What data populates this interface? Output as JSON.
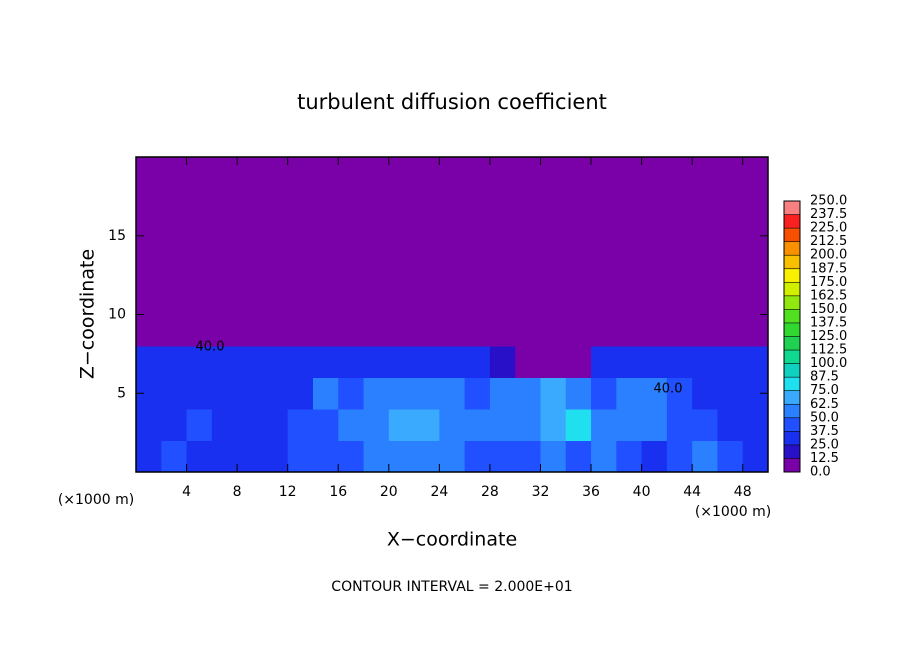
{
  "chart_data": {
    "type": "contour",
    "title": "turbulent diffusion coefficient",
    "xlabel": "X−coordinate",
    "ylabel": "Z−coordinate",
    "x_unit_label": "(×1000 m)",
    "footer": "CONTOUR INTERVAL = 2.000E+01",
    "annotations": [
      "40.0",
      "40.0"
    ],
    "xlim": [
      0,
      50
    ],
    "ylim": [
      0,
      20
    ],
    "xticks": [
      4,
      8,
      12,
      16,
      20,
      24,
      28,
      32,
      36,
      40,
      44,
      48
    ],
    "yticks": [
      5,
      10,
      15
    ],
    "x": [
      1,
      3,
      5,
      7,
      9,
      11,
      13,
      15,
      17,
      19,
      21,
      23,
      25,
      27,
      29,
      31,
      33,
      35,
      37,
      39,
      41,
      43,
      45,
      47,
      49
    ],
    "y": [
      1,
      3,
      5,
      7,
      9,
      11,
      13,
      15,
      17,
      19
    ],
    "z": [
      [
        35,
        40,
        35,
        30,
        30,
        30,
        40,
        45,
        40,
        50,
        55,
        60,
        50,
        45,
        40,
        45,
        50,
        40,
        55,
        45,
        35,
        40,
        50,
        40,
        35
      ],
      [
        30,
        35,
        40,
        35,
        30,
        35,
        45,
        40,
        55,
        60,
        65,
        70,
        55,
        60,
        50,
        60,
        70,
        75,
        60,
        55,
        50,
        40,
        45,
        35,
        35
      ],
      [
        30,
        30,
        35,
        30,
        35,
        30,
        35,
        50,
        45,
        50,
        55,
        50,
        55,
        45,
        50,
        60,
        65,
        55,
        45,
        50,
        55,
        40,
        35,
        35,
        30
      ],
      [
        30,
        30,
        30,
        30,
        30,
        25,
        25,
        30,
        35,
        30,
        30,
        30,
        30,
        30,
        20,
        10,
        5,
        10,
        25,
        30,
        30,
        30,
        30,
        30,
        25
      ],
      [
        2,
        3,
        2,
        2,
        0,
        0,
        0,
        2,
        3,
        0,
        0,
        0,
        0,
        0,
        0,
        0,
        0,
        0,
        0,
        0,
        0,
        0,
        0,
        2,
        5
      ],
      [
        0,
        0,
        0,
        0,
        0,
        0,
        0,
        0,
        0,
        0,
        0,
        0,
        0,
        0,
        0,
        0,
        0,
        0,
        0,
        0,
        0,
        0,
        0,
        0,
        0
      ],
      [
        0,
        0,
        0,
        0,
        0,
        0,
        0,
        0,
        0,
        0,
        0,
        0,
        0,
        0,
        0,
        0,
        0,
        0,
        0,
        0,
        0,
        0,
        0,
        0,
        0
      ],
      [
        0,
        0,
        0,
        0,
        0,
        0,
        0,
        0,
        0,
        0,
        0,
        0,
        0,
        0,
        0,
        0,
        0,
        0,
        0,
        0,
        0,
        0,
        0,
        0,
        0
      ],
      [
        0,
        0,
        0,
        0,
        0,
        0,
        0,
        0,
        0,
        0,
        0,
        0,
        0,
        0,
        0,
        0,
        0,
        0,
        0,
        0,
        0,
        0,
        0,
        0,
        0
      ],
      [
        0,
        0,
        0,
        0,
        0,
        0,
        0,
        0,
        0,
        0,
        0,
        0,
        0,
        0,
        0,
        0,
        0,
        0,
        0,
        0,
        0,
        0,
        0,
        0,
        0
      ]
    ],
    "levels": [
      {
        "value": 0,
        "label": "0.0"
      },
      {
        "value": 12.5,
        "label": "12.5"
      },
      {
        "value": 25,
        "label": "25.0"
      },
      {
        "value": 37.5,
        "label": "37.5"
      },
      {
        "value": 50,
        "label": "50.0"
      },
      {
        "value": 62.5,
        "label": "62.5"
      },
      {
        "value": 75,
        "label": "75.0"
      },
      {
        "value": 87.5,
        "label": "87.5"
      },
      {
        "value": 100,
        "label": "100.0"
      },
      {
        "value": 112.5,
        "label": "112.5"
      },
      {
        "value": 125,
        "label": "125.0"
      },
      {
        "value": 137.5,
        "label": "137.5"
      },
      {
        "value": 150,
        "label": "150.0"
      },
      {
        "value": 162.5,
        "label": "162.5"
      },
      {
        "value": 175,
        "label": "175.0"
      },
      {
        "value": 187.5,
        "label": "187.5"
      },
      {
        "value": 200,
        "label": "200.0"
      },
      {
        "value": 212.5,
        "label": "212.5"
      },
      {
        "value": 225,
        "label": "225.0"
      },
      {
        "value": 237.5,
        "label": "237.5"
      },
      {
        "value": 250,
        "label": "250.0"
      }
    ],
    "colors": [
      "#7a00a8",
      "#2810c8",
      "#1a30f0",
      "#2050ff",
      "#2a80ff",
      "#3aaaff",
      "#20e0f0",
      "#10d0c0",
      "#10d890",
      "#20d050",
      "#30d830",
      "#50e020",
      "#90e810",
      "#d0f000",
      "#f8f000",
      "#f8c000",
      "#f89000",
      "#f85000",
      "#f82020",
      "#f88080"
    ]
  }
}
